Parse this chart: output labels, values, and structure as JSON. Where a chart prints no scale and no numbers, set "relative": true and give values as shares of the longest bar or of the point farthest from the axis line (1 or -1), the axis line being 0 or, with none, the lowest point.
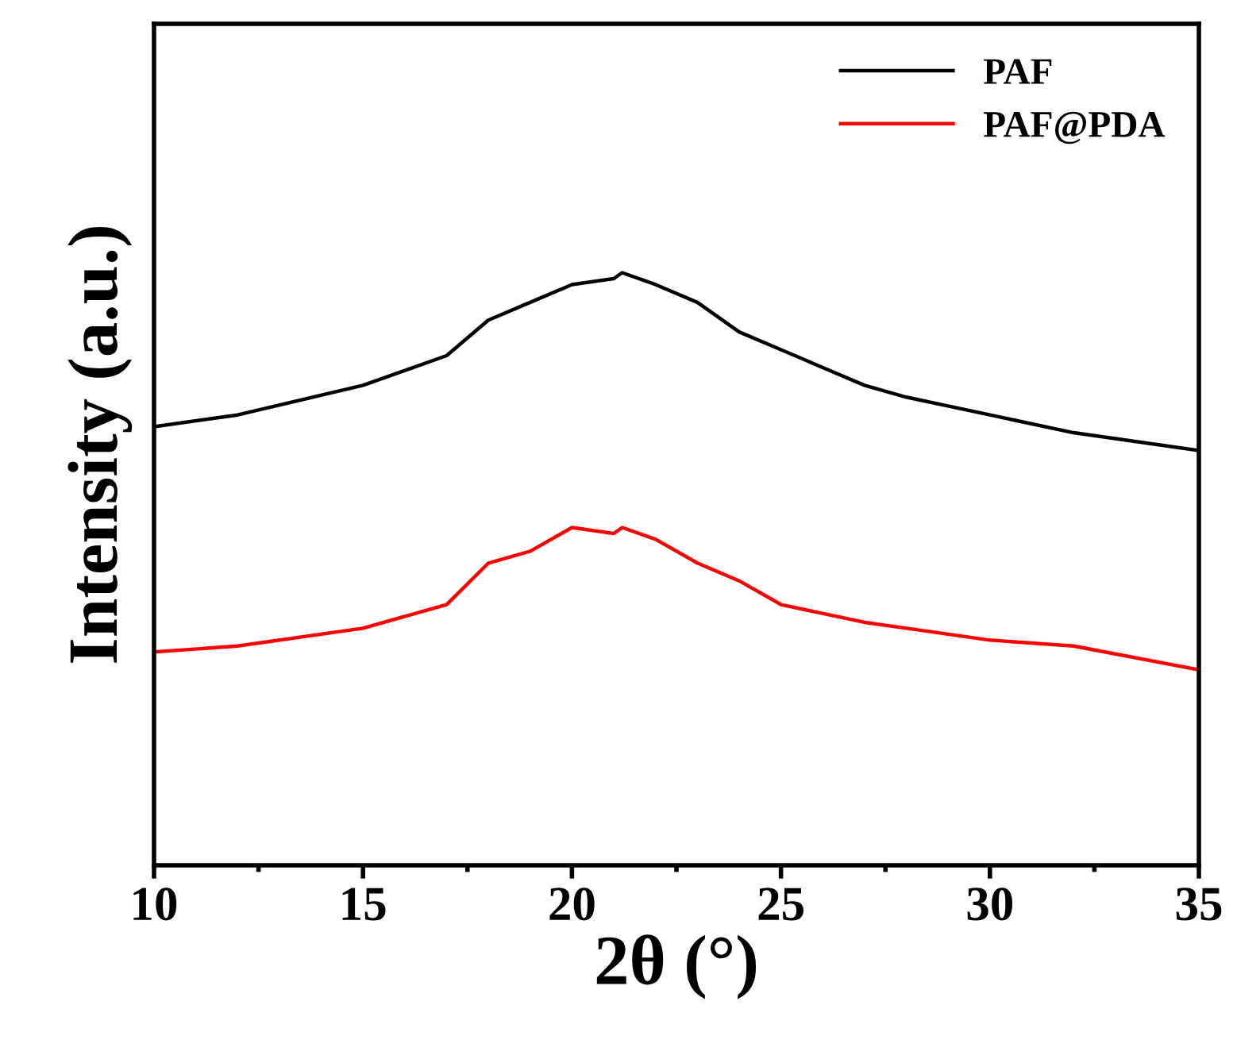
{
  "chart_data": {
    "type": "line",
    "relative": true,
    "xlabel": "2θ (°)",
    "ylabel": "Intensity (a.u.)",
    "xlim": [
      10,
      35
    ],
    "xticks": [
      10,
      {
        "value": 12.5,
        "label": null
      },
      15,
      {
        "value": 17.5,
        "label": null
      },
      20,
      {
        "value": 22.5,
        "label": null
      },
      25,
      {
        "value": 27.5,
        "label": null
      },
      30,
      {
        "value": 32.5,
        "label": null
      },
      35
    ],
    "x": [
      10,
      12,
      15,
      17,
      18,
      19,
      20,
      21,
      21.2,
      22,
      23,
      24,
      25,
      27,
      28,
      30,
      32,
      35
    ],
    "series": [
      {
        "name": "PAF",
        "color": "#000000",
        "values": [
          0.74,
          0.76,
          0.81,
          0.86,
          0.92,
          0.95,
          0.98,
          0.99,
          1.0,
          0.98,
          0.95,
          0.9,
          0.87,
          0.81,
          0.79,
          0.76,
          0.73,
          0.7
        ]
      },
      {
        "name": "PAF@PDA",
        "color": "#ff0000",
        "values": [
          0.36,
          0.37,
          0.4,
          0.44,
          0.51,
          0.53,
          0.57,
          0.56,
          0.57,
          0.55,
          0.51,
          0.48,
          0.44,
          0.41,
          0.4,
          0.38,
          0.37,
          0.33
        ]
      }
    ],
    "legend": "top right",
    "grid": false,
    "marker": "none",
    "line_style": "solid"
  }
}
